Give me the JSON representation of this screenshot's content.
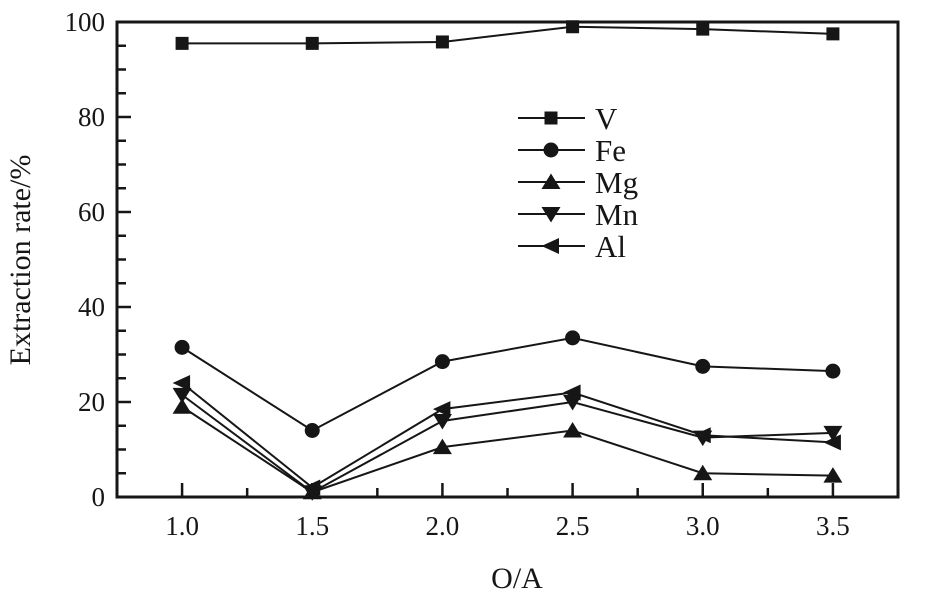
{
  "chart_data": {
    "type": "line",
    "title": "",
    "xlabel": "O/A",
    "ylabel": "Extraction rate/%",
    "x": [
      1.0,
      1.5,
      2.0,
      2.5,
      3.0,
      3.5
    ],
    "x_tick_labels": [
      "1.0",
      "1.5",
      "2.0",
      "2.5",
      "3.0",
      "3.5"
    ],
    "x_minor_ticks": [
      1.25,
      1.75,
      2.25,
      2.75,
      3.25
    ],
    "y_ticks": [
      0,
      20,
      40,
      60,
      80,
      100
    ],
    "y_tick_labels": [
      "0",
      "20",
      "40",
      "60",
      "80",
      "100"
    ],
    "y_minor_step": 5,
    "xlim": [
      0.75,
      3.75
    ],
    "ylim": [
      0,
      100
    ],
    "grid": false,
    "legend_position": "inside-upper-center",
    "line_color": "#161616",
    "series": [
      {
        "name": "V",
        "marker": "square",
        "values": [
          95.5,
          95.5,
          95.8,
          99.0,
          98.5,
          97.5
        ]
      },
      {
        "name": "Fe",
        "marker": "circle",
        "values": [
          31.5,
          14.0,
          28.5,
          33.5,
          27.5,
          26.5
        ]
      },
      {
        "name": "Mg",
        "marker": "triangle-up",
        "values": [
          19.0,
          1.0,
          10.5,
          14.0,
          5.0,
          4.5
        ]
      },
      {
        "name": "Mn",
        "marker": "triangle-down",
        "values": [
          21.5,
          1.0,
          16.0,
          20.0,
          12.5,
          13.5
        ]
      },
      {
        "name": "Al",
        "marker": "triangle-left",
        "values": [
          24.0,
          2.0,
          18.5,
          22.0,
          13.0,
          11.5
        ]
      }
    ]
  }
}
